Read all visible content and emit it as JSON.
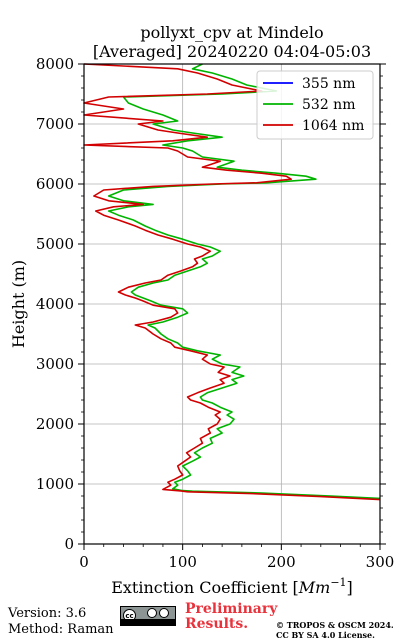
{
  "chart_data": {
    "type": "line",
    "title_line1": "pollyxt_cpv at Mindelo",
    "title_line2": "[Averaged] 20240220 04:04-05:03",
    "xlabel_text": "Extinction Coefficient [",
    "xlabel_unit_base": "Mm",
    "xlabel_unit_exp": "−1",
    "xlabel_close": "]",
    "ylabel": "Height (m)",
    "xlim": [
      0,
      300
    ],
    "ylim": [
      0,
      8000
    ],
    "xticks": [
      "0",
      "100",
      "200",
      "300"
    ],
    "yticks": [
      "0",
      "1000",
      "2000",
      "3000",
      "4000",
      "5000",
      "6000",
      "7000",
      "8000"
    ],
    "grid": true,
    "legend_position": "top-right",
    "series": [
      {
        "name": "355 nm",
        "color": "#0000ff",
        "points": []
      },
      {
        "name": "532 nm",
        "color": "#00b400",
        "points": [
          [
            300,
            760
          ],
          [
            250,
            800
          ],
          [
            180,
            850
          ],
          [
            110,
            880
          ],
          [
            100,
            890
          ],
          [
            90,
            920
          ],
          [
            95,
            980
          ],
          [
            92,
            1030
          ],
          [
            100,
            1080
          ],
          [
            108,
            1150
          ],
          [
            105,
            1220
          ],
          [
            100,
            1300
          ],
          [
            110,
            1380
          ],
          [
            118,
            1450
          ],
          [
            112,
            1520
          ],
          [
            120,
            1600
          ],
          [
            130,
            1680
          ],
          [
            128,
            1760
          ],
          [
            140,
            1850
          ],
          [
            135,
            1920
          ],
          [
            148,
            2000
          ],
          [
            152,
            2080
          ],
          [
            145,
            2150
          ],
          [
            150,
            2200
          ],
          [
            138,
            2280
          ],
          [
            130,
            2350
          ],
          [
            120,
            2400
          ],
          [
            118,
            2450
          ],
          [
            125,
            2520
          ],
          [
            140,
            2600
          ],
          [
            155,
            2680
          ],
          [
            150,
            2740
          ],
          [
            162,
            2800
          ],
          [
            150,
            2860
          ],
          [
            158,
            2950
          ],
          [
            140,
            3000
          ],
          [
            130,
            3080
          ],
          [
            138,
            3150
          ],
          [
            115,
            3220
          ],
          [
            100,
            3280
          ],
          [
            95,
            3350
          ],
          [
            85,
            3420
          ],
          [
            78,
            3500
          ],
          [
            72,
            3600
          ],
          [
            65,
            3650
          ],
          [
            80,
            3700
          ],
          [
            95,
            3780
          ],
          [
            105,
            3850
          ],
          [
            100,
            3920
          ],
          [
            78,
            3980
          ],
          [
            68,
            4050
          ],
          [
            60,
            4100
          ],
          [
            52,
            4150
          ],
          [
            48,
            4200
          ],
          [
            55,
            4280
          ],
          [
            70,
            4350
          ],
          [
            85,
            4400
          ],
          [
            92,
            4480
          ],
          [
            105,
            4550
          ],
          [
            118,
            4620
          ],
          [
            125,
            4680
          ],
          [
            120,
            4750
          ],
          [
            130,
            4800
          ],
          [
            138,
            4880
          ],
          [
            128,
            4950
          ],
          [
            115,
            5000
          ],
          [
            100,
            5080
          ],
          [
            85,
            5150
          ],
          [
            72,
            5230
          ],
          [
            62,
            5300
          ],
          [
            50,
            5400
          ],
          [
            35,
            5480
          ],
          [
            25,
            5550
          ],
          [
            45,
            5620
          ],
          [
            70,
            5660
          ],
          [
            40,
            5720
          ],
          [
            25,
            5800
          ],
          [
            40,
            5900
          ],
          [
            85,
            5960
          ],
          [
            140,
            6000
          ],
          [
            185,
            6020
          ],
          [
            235,
            6080
          ],
          [
            225,
            6130
          ],
          [
            195,
            6180
          ],
          [
            160,
            6230
          ],
          [
            135,
            6280
          ],
          [
            152,
            6380
          ],
          [
            120,
            6450
          ],
          [
            110,
            6550
          ],
          [
            100,
            6600
          ],
          [
            80,
            6650
          ],
          [
            105,
            6720
          ],
          [
            140,
            6780
          ],
          [
            110,
            6850
          ],
          [
            90,
            6900
          ],
          [
            70,
            7000
          ],
          [
            95,
            7050
          ],
          [
            80,
            7150
          ],
          [
            60,
            7250
          ],
          [
            45,
            7350
          ],
          [
            40,
            7450
          ],
          [
            140,
            7500
          ],
          [
            195,
            7550
          ],
          [
            165,
            7650
          ],
          [
            150,
            7750
          ],
          [
            130,
            7850
          ],
          [
            110,
            7920
          ],
          [
            120,
            8000
          ]
        ]
      },
      {
        "name": "1064 nm",
        "color": "#d20000",
        "points": [
          [
            300,
            740
          ],
          [
            240,
            790
          ],
          [
            170,
            840
          ],
          [
            105,
            870
          ],
          [
            98,
            885
          ],
          [
            80,
            910
          ],
          [
            88,
            980
          ],
          [
            85,
            1030
          ],
          [
            92,
            1080
          ],
          [
            100,
            1150
          ],
          [
            97,
            1220
          ],
          [
            95,
            1300
          ],
          [
            102,
            1380
          ],
          [
            108,
            1450
          ],
          [
            104,
            1520
          ],
          [
            112,
            1600
          ],
          [
            120,
            1680
          ],
          [
            118,
            1760
          ],
          [
            128,
            1850
          ],
          [
            126,
            1920
          ],
          [
            135,
            2000
          ],
          [
            138,
            2080
          ],
          [
            133,
            2150
          ],
          [
            138,
            2200
          ],
          [
            126,
            2280
          ],
          [
            118,
            2350
          ],
          [
            108,
            2400
          ],
          [
            105,
            2450
          ],
          [
            115,
            2520
          ],
          [
            128,
            2600
          ],
          [
            142,
            2680
          ],
          [
            138,
            2740
          ],
          [
            148,
            2800
          ],
          [
            136,
            2860
          ],
          [
            142,
            2950
          ],
          [
            128,
            3000
          ],
          [
            120,
            3080
          ],
          [
            125,
            3150
          ],
          [
            108,
            3220
          ],
          [
            92,
            3280
          ],
          [
            88,
            3350
          ],
          [
            78,
            3420
          ],
          [
            70,
            3500
          ],
          [
            62,
            3600
          ],
          [
            52,
            3650
          ],
          [
            70,
            3700
          ],
          [
            88,
            3780
          ],
          [
            95,
            3850
          ],
          [
            92,
            3920
          ],
          [
            70,
            3980
          ],
          [
            60,
            4050
          ],
          [
            52,
            4100
          ],
          [
            42,
            4150
          ],
          [
            35,
            4200
          ],
          [
            45,
            4280
          ],
          [
            62,
            4350
          ],
          [
            78,
            4400
          ],
          [
            85,
            4480
          ],
          [
            98,
            4550
          ],
          [
            110,
            4620
          ],
          [
            115,
            4680
          ],
          [
            112,
            4750
          ],
          [
            120,
            4800
          ],
          [
            128,
            4880
          ],
          [
            118,
            4950
          ],
          [
            105,
            5000
          ],
          [
            90,
            5080
          ],
          [
            75,
            5150
          ],
          [
            62,
            5230
          ],
          [
            52,
            5300
          ],
          [
            35,
            5400
          ],
          [
            20,
            5480
          ],
          [
            12,
            5550
          ],
          [
            30,
            5620
          ],
          [
            60,
            5660
          ],
          [
            25,
            5720
          ],
          [
            10,
            5800
          ],
          [
            20,
            5900
          ],
          [
            70,
            5960
          ],
          [
            130,
            6000
          ],
          [
            175,
            6020
          ],
          [
            210,
            6080
          ],
          [
            205,
            6130
          ],
          [
            180,
            6180
          ],
          [
            145,
            6230
          ],
          [
            120,
            6280
          ],
          [
            138,
            6380
          ],
          [
            105,
            6450
          ],
          [
            95,
            6550
          ],
          [
            85,
            6600
          ],
          [
            0,
            6650
          ],
          [
            90,
            6720
          ],
          [
            125,
            6780
          ],
          [
            95,
            6850
          ],
          [
            75,
            6900
          ],
          [
            55,
            7000
          ],
          [
            80,
            7050
          ],
          [
            0,
            7150
          ],
          [
            40,
            7250
          ],
          [
            0,
            7350
          ],
          [
            25,
            7450
          ],
          [
            125,
            7500
          ],
          [
            180,
            7550
          ],
          [
            150,
            7650
          ],
          [
            135,
            7750
          ],
          [
            115,
            7850
          ],
          [
            95,
            7920
          ],
          [
            0,
            8000
          ]
        ]
      }
    ]
  },
  "footer": {
    "version": "Version: 3.6",
    "method": "Method: Raman",
    "prelim_line1": "Preliminary",
    "prelim_line2": "Results.",
    "copyright_line1": "© TROPOS & OSCM 2024.",
    "copyright_line2": "CC BY SA 4.0 License.",
    "license_badge_text": "cc BY SA"
  }
}
